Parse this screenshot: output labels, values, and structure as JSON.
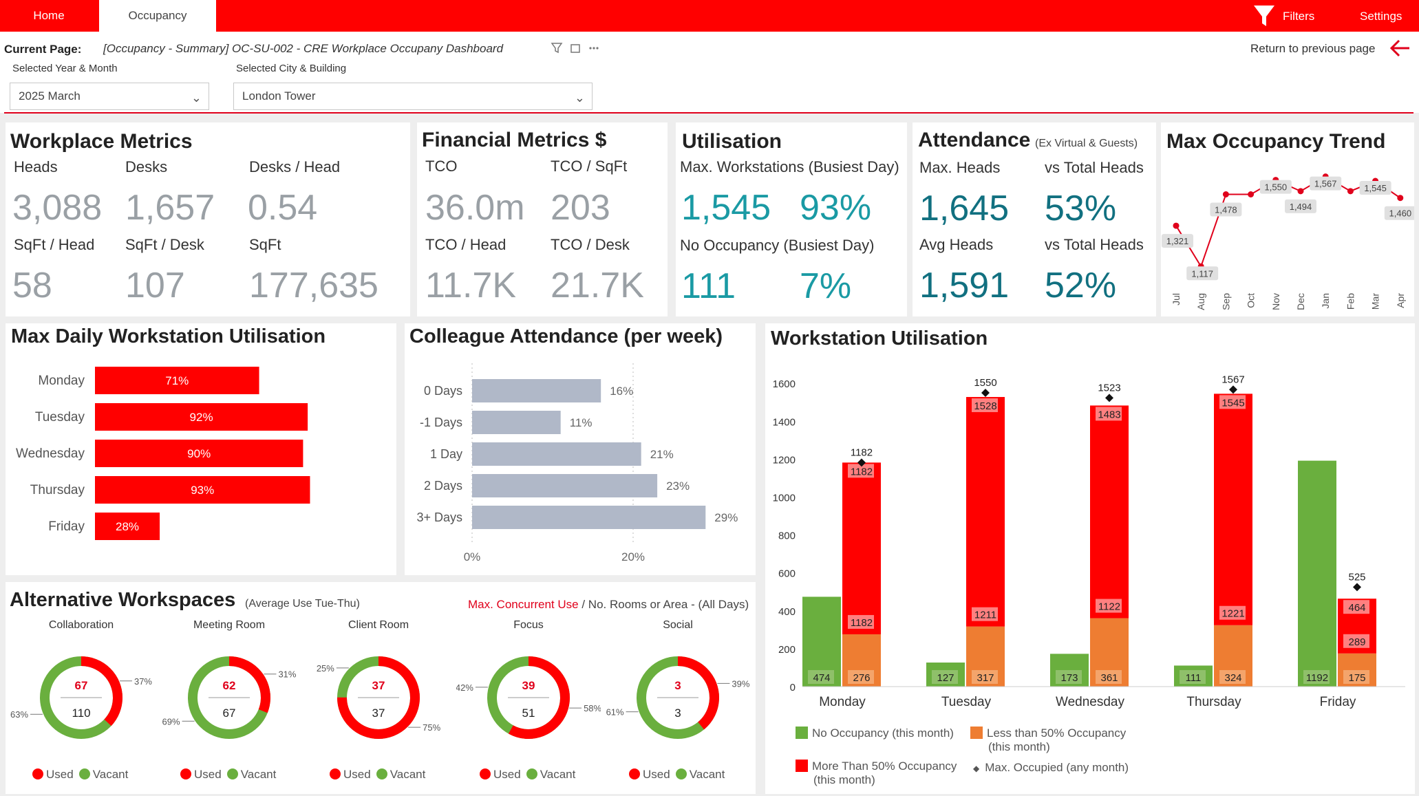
{
  "nav": {
    "tabs": [
      "Home",
      "Occupancy"
    ],
    "filters_label": "Filters",
    "settings_label": "Settings"
  },
  "header": {
    "current_page_label": "Current Page:",
    "current_page_value": "[Occupancy - Summary] OC-SU-002 - CRE Workplace Occupany Dashboard",
    "return_label": "Return to previous page",
    "year_month_label": "Selected Year & Month",
    "year_month_value": "2025 March",
    "city_building_label": "Selected City & Building",
    "city_building_value": "London Tower"
  },
  "workplace": {
    "title": "Workplace Metrics",
    "heads_label": "Heads",
    "heads": "3,088",
    "desks_label": "Desks",
    "desks": "1,657",
    "desks_head_label": "Desks / Head",
    "desks_head": "0.54",
    "sqft_head_label": "SqFt / Head",
    "sqft_head": "58",
    "sqft_desk_label": "SqFt / Desk",
    "sqft_desk": "107",
    "sqft_label": "SqFt",
    "sqft": "177,635"
  },
  "financial": {
    "title": "Financial Metrics $",
    "tco_label": "TCO",
    "tco": "36.0m",
    "tco_sqft_label": "TCO / SqFt",
    "tco_sqft": "203",
    "tco_head_label": "TCO / Head",
    "tco_head": "11.7K",
    "tco_desk_label": "TCO / Desk",
    "tco_desk": "21.7K"
  },
  "utilisation": {
    "title": "Utilisation",
    "max_ws_label": "Max. Workstations (Busiest Day)",
    "max_ws": "1,545",
    "max_ws_pct": "93%",
    "no_occ_label": "No Occupancy (Busiest Day)",
    "no_occ": "111",
    "no_occ_pct": "7%"
  },
  "attendance": {
    "title": "Attendance",
    "subtitle": "(Ex Virtual & Guests)",
    "max_heads_label": "Max. Heads",
    "max_heads": "1,645",
    "vs_total_label_1": "vs Total Heads",
    "vs_total_1": "53%",
    "avg_heads_label": "Avg Heads",
    "avg_heads": "1,591",
    "vs_total_label_2": "vs Total Heads",
    "vs_total_2": "52%"
  },
  "chart_data": [
    {
      "id": "trend",
      "type": "line",
      "title": "Max Occupancy Trend",
      "categories": [
        "Jul",
        "Aug",
        "Sep",
        "Oct",
        "Nov",
        "Dec",
        "Jan",
        "Feb",
        "Mar",
        "Apr"
      ],
      "values": [
        1321,
        1117,
        1478,
        1478,
        1550,
        1494,
        1567,
        1494,
        1545,
        1460
      ],
      "labels": [
        "1,321",
        "1,117",
        "1,478",
        "",
        "1,550",
        "1,494",
        "1,567",
        "",
        "1,545",
        "1,460"
      ],
      "color": "#e0001b"
    },
    {
      "id": "daily",
      "type": "bar",
      "title": "Max Daily Workstation Utilisation",
      "categories": [
        "Monday",
        "Tuesday",
        "Wednesday",
        "Thursday",
        "Friday"
      ],
      "values": [
        71,
        92,
        90,
        93,
        28
      ],
      "labels": [
        "71%",
        "92%",
        "90%",
        "93%",
        "28%"
      ],
      "color": "#ff0000"
    },
    {
      "id": "attendance_week",
      "type": "bar",
      "title": "Colleague Attendance (per week)",
      "categories": [
        "0 Days",
        "-1 Days",
        "1 Day",
        "2 Days",
        "3+ Days"
      ],
      "values": [
        16,
        11,
        21,
        23,
        29
      ],
      "labels": [
        "16%",
        "11%",
        "21%",
        "23%",
        "29%"
      ],
      "xticks": [
        "0%",
        "20%"
      ],
      "xlim": [
        0,
        30
      ],
      "color": "#b0b8c8"
    },
    {
      "id": "workstation",
      "type": "bar",
      "title": "Workstation Utilisation",
      "categories": [
        "Monday",
        "Tuesday",
        "Wednesday",
        "Thursday",
        "Friday"
      ],
      "ylim": [
        0,
        1600
      ],
      "yticks": [
        "0",
        "200",
        "400",
        "600",
        "800",
        "1000",
        "1200",
        "1400",
        "1600"
      ],
      "no_occupancy": [
        474,
        127,
        173,
        111,
        1192
      ],
      "less_than_50": [
        276,
        317,
        361,
        324,
        175
      ],
      "more_than_50": [
        1182,
        1211,
        1122,
        1221,
        289
      ],
      "less_than_50_top": [
        276,
        317,
        361,
        324,
        175
      ],
      "more_than_50_top": [
        1182,
        1528,
        1483,
        1545,
        464
      ],
      "max_occupied": [
        1182,
        1550,
        1523,
        1567,
        525
      ],
      "colors": {
        "no_occupancy": "#6aaf3e",
        "less_than_50": "#ee7d32",
        "more_than_50": "#ff0000"
      },
      "legend": {
        "no_occupancy": "No Occupancy (this month)",
        "less_than_50_line1": "Less than 50% Occupancy",
        "less_than_50_line2": "(this month)",
        "more_than_50_line1": "More Than 50% Occupancy",
        "more_than_50_line2": "(this month)",
        "max_occupied": "Max. Occupied (any month)"
      }
    },
    {
      "id": "alt_workspaces",
      "type": "pie",
      "title": "Alternative Workspaces",
      "subtitle": "(Average Use Tue-Thu)",
      "items": [
        {
          "name": "Collaboration",
          "used": 67,
          "total": 110,
          "used_pct": 37,
          "vacant_pct": 63,
          "used_label": "37%",
          "vacant_label": "63%"
        },
        {
          "name": "Meeting Room",
          "used": 62,
          "total": 67,
          "used_pct": 31,
          "vacant_pct": 69,
          "used_label": "31%",
          "vacant_label": "69%"
        },
        {
          "name": "Client Room",
          "used": 37,
          "total": 37,
          "used_pct": 75,
          "vacant_pct": 25,
          "used_label": "75%",
          "vacant_label": "25%"
        },
        {
          "name": "Focus",
          "used": 39,
          "total": 51,
          "used_pct": 58,
          "vacant_pct": 42,
          "used_label": "58%",
          "vacant_label": "42%"
        },
        {
          "name": "Social",
          "used": 3,
          "total": 3,
          "used_pct": 39,
          "vacant_pct": 61,
          "used_label": "39%",
          "vacant_label": "61%"
        }
      ],
      "colors": {
        "used": "#ff0000",
        "vacant": "#6aaf3e"
      }
    }
  ],
  "alt_header": {
    "max_concurrent": "Max. Concurrent Use",
    "rest": " / No. Rooms or Area - (All Days)",
    "used_label": "Used",
    "vacant_label": "Vacant"
  }
}
